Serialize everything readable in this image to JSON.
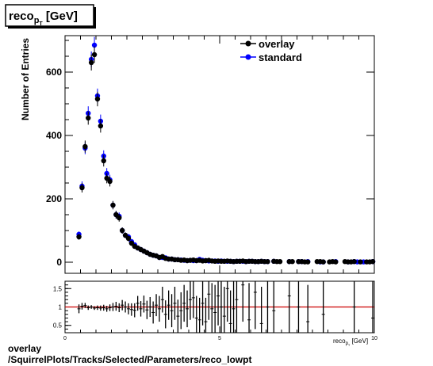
{
  "chart_data": [
    {
      "type": "scatter",
      "title": "reco",
      "title_sub": "p",
      "title_subsub": "T",
      "title_suffix": " [GeV]",
      "ylabel": "Number of Entries",
      "xlim": [
        0,
        10
      ],
      "ylim": [
        -35,
        715
      ],
      "y_ticks": [
        0,
        200,
        400,
        600
      ],
      "legend": {
        "placement": "top-right",
        "entries": [
          "overlay",
          "standard"
        ]
      },
      "colors": {
        "overlay": "#000000",
        "standard": "#0000ff"
      },
      "series": [
        {
          "name": "overlay",
          "x": [
            0.45,
            0.55,
            0.65,
            0.75,
            0.85,
            0.95,
            1.05,
            1.15,
            1.25,
            1.35,
            1.45,
            1.55,
            1.65,
            1.75,
            1.85,
            1.95,
            2.05,
            2.15,
            2.25,
            2.35,
            2.45,
            2.55,
            2.65,
            2.75,
            2.85,
            2.95,
            3.05,
            3.15,
            3.25,
            3.35,
            3.45,
            3.55,
            3.65,
            3.75,
            3.85,
            3.95,
            4.05,
            4.15,
            4.25,
            4.35,
            4.45,
            4.55,
            4.65,
            4.75,
            4.85,
            4.95,
            5.05,
            5.15,
            5.25,
            5.35,
            5.45,
            5.55,
            5.65,
            5.75,
            5.85,
            5.95,
            6.05,
            6.15,
            6.25,
            6.35,
            6.45,
            6.55,
            6.75,
            6.85,
            6.95,
            7.25,
            7.35,
            7.55,
            7.65,
            7.75,
            7.85,
            8.15,
            8.25,
            8.35,
            8.55,
            8.65,
            8.75,
            9.05,
            9.15,
            9.25,
            9.35,
            9.55,
            9.75,
            9.85,
            9.95
          ],
          "y": [
            80,
            235,
            365,
            455,
            630,
            655,
            515,
            430,
            320,
            265,
            255,
            180,
            150,
            140,
            100,
            85,
            75,
            60,
            50,
            45,
            40,
            35,
            30,
            25,
            22,
            20,
            15,
            18,
            12,
            10,
            10,
            8,
            8,
            6,
            7,
            5,
            6,
            7,
            5,
            6,
            4,
            5,
            6,
            4,
            3,
            4,
            3,
            3,
            4,
            3,
            2,
            3,
            3,
            4,
            2,
            3,
            3,
            2,
            2,
            3,
            2,
            2,
            3,
            2,
            2,
            2,
            2,
            2,
            2,
            1,
            1,
            2,
            2,
            1,
            1,
            2,
            1,
            2,
            1,
            1,
            2,
            1,
            1,
            1,
            2
          ],
          "err": [
            9,
            15,
            19,
            21,
            25,
            26,
            23,
            21,
            18,
            16,
            16,
            13,
            12,
            12,
            10,
            9,
            9,
            8,
            7,
            7,
            6,
            6,
            5,
            5,
            5,
            4,
            4,
            4,
            3,
            3,
            3,
            3,
            3,
            2,
            3,
            2,
            2,
            3,
            2,
            2,
            2,
            2,
            2,
            2,
            2,
            2,
            2,
            2,
            2,
            2,
            1,
            2,
            2,
            2,
            1,
            2,
            2,
            1,
            1,
            2,
            1,
            1,
            2,
            1,
            1,
            1,
            1,
            1,
            1,
            1,
            1,
            1,
            1,
            1,
            1,
            1,
            1,
            1,
            1,
            1,
            1,
            1,
            1,
            1,
            1
          ]
        },
        {
          "name": "standard",
          "x": [
            0.45,
            0.55,
            0.65,
            0.75,
            0.85,
            0.95,
            1.05,
            1.15,
            1.25,
            1.35,
            1.45,
            1.55,
            1.65,
            1.75,
            1.85,
            1.95,
            2.05,
            2.15,
            2.25,
            2.35,
            2.45,
            2.55,
            2.65,
            2.75,
            2.85,
            2.95,
            3.05,
            3.15,
            3.25,
            3.35,
            3.45,
            3.55,
            3.65,
            3.75,
            3.85,
            3.95,
            4.05,
            4.15,
            4.25,
            4.35,
            4.45,
            4.55,
            4.65,
            4.75,
            4.85,
            4.95,
            5.05,
            5.15,
            5.25,
            5.35,
            5.45,
            5.55,
            5.65,
            5.75,
            5.85,
            5.95,
            6.05,
            6.15,
            6.25,
            6.35,
            6.45,
            6.55,
            6.75,
            7.25,
            7.55,
            7.65,
            7.85,
            8.25,
            8.35,
            8.75,
            9.15,
            9.35,
            9.45,
            9.65,
            9.95
          ],
          "y": [
            88,
            240,
            360,
            470,
            640,
            685,
            525,
            445,
            335,
            280,
            260,
            180,
            150,
            145,
            100,
            85,
            80,
            65,
            55,
            45,
            40,
            35,
            30,
            25,
            22,
            20,
            15,
            15,
            14,
            10,
            10,
            8,
            8,
            7,
            6,
            5,
            6,
            5,
            5,
            9,
            6,
            5,
            4,
            4,
            4,
            3,
            4,
            3,
            3,
            3,
            2,
            3,
            3,
            3,
            2,
            3,
            3,
            2,
            2,
            3,
            2,
            2,
            3,
            2,
            2,
            2,
            2,
            1,
            1,
            2,
            1,
            2,
            1,
            1,
            2
          ],
          "err": [
            9,
            15,
            19,
            22,
            25,
            26,
            23,
            21,
            18,
            17,
            16,
            13,
            12,
            12,
            10,
            9,
            9,
            8,
            7,
            7,
            6,
            6,
            5,
            5,
            5,
            4,
            4,
            4,
            4,
            3,
            3,
            3,
            3,
            3,
            2,
            2,
            2,
            2,
            2,
            3,
            2,
            2,
            2,
            2,
            2,
            2,
            2,
            2,
            2,
            2,
            1,
            2,
            2,
            2,
            1,
            2,
            2,
            1,
            1,
            2,
            1,
            1,
            2,
            1,
            1,
            1,
            1,
            1,
            1,
            1,
            1,
            1,
            1,
            1,
            1
          ]
        }
      ]
    },
    {
      "type": "scatter",
      "xlabel": "reco",
      "xlabel_sub": "p",
      "xlabel_subsub": "T",
      "xlabel_suffix": " [GeV]",
      "xlim": [
        0,
        10
      ],
      "ylim": [
        0.3,
        1.7
      ],
      "x_ticks": [
        0,
        5,
        10
      ],
      "y_ticks": [
        0.5,
        1,
        1.5
      ],
      "reference_line": {
        "y": 1,
        "color": "#cc0000"
      },
      "series": [
        {
          "name": "ratio",
          "x": [
            0.45,
            0.55,
            0.65,
            0.75,
            0.85,
            0.95,
            1.05,
            1.15,
            1.25,
            1.35,
            1.45,
            1.55,
            1.65,
            1.75,
            1.85,
            1.95,
            2.05,
            2.15,
            2.25,
            2.35,
            2.45,
            2.55,
            2.65,
            2.75,
            2.85,
            2.95,
            3.05,
            3.15,
            3.25,
            3.35,
            3.45,
            3.55,
            3.65,
            3.75,
            3.85,
            3.95,
            4.05,
            4.15,
            4.25,
            4.35,
            4.45,
            4.55,
            4.65,
            4.75,
            4.85,
            4.95,
            5.05,
            5.15,
            5.25,
            5.35,
            5.45,
            5.55,
            5.75,
            5.95,
            6.15,
            6.35,
            6.55,
            6.75,
            7.25,
            7.55,
            7.85,
            8.35,
            9.35,
            9.95
          ],
          "y": [
            0.95,
            1.02,
            1.04,
            0.98,
            1.0,
            0.97,
            0.98,
            0.97,
            0.98,
            0.95,
            0.98,
            1.0,
            1.02,
            0.98,
            1.05,
            1.0,
            0.95,
            0.93,
            0.91,
            1.1,
            0.95,
            1.08,
            0.92,
            1.0,
            0.85,
            1.05,
            0.95,
            1.2,
            0.8,
            1.05,
            0.9,
            1.1,
            0.75,
            0.9,
            1.1,
            0.95,
            1.2,
            1.25,
            0.7,
            0.65,
            1.1,
            0.6,
            1.35,
            0.95,
            0.85,
            1.3,
            1.0,
            0.75,
            1.5,
            0.55,
            0.95,
            1.2,
            1.6,
            0.65,
            1.4,
            0.55,
            1.0,
            0.9,
            1.3,
            1.0,
            0.6,
            0.8,
            1.0,
            0.7
          ],
          "err": [
            0.12,
            0.09,
            0.07,
            0.06,
            0.05,
            0.05,
            0.06,
            0.07,
            0.08,
            0.08,
            0.09,
            0.11,
            0.12,
            0.12,
            0.14,
            0.15,
            0.15,
            0.17,
            0.19,
            0.2,
            0.21,
            0.23,
            0.25,
            0.27,
            0.3,
            0.3,
            0.35,
            0.35,
            0.38,
            0.4,
            0.45,
            0.45,
            0.45,
            0.5,
            0.5,
            0.5,
            0.55,
            0.55,
            0.6,
            0.6,
            0.6,
            0.65,
            0.7,
            0.7,
            0.75,
            0.8,
            0.8,
            0.8,
            0.9,
            0.9,
            0.9,
            1.0,
            1.0,
            1.0,
            1.0,
            1.0,
            1.0,
            1.0,
            1.0,
            1.0,
            1.0,
            1.0,
            1.0,
            1.0
          ]
        }
      ]
    }
  ],
  "footer": {
    "line1": "overlay",
    "line2": "/SquirrelPlots/Tracks/Selected/Parameters/reco_lowpt"
  }
}
